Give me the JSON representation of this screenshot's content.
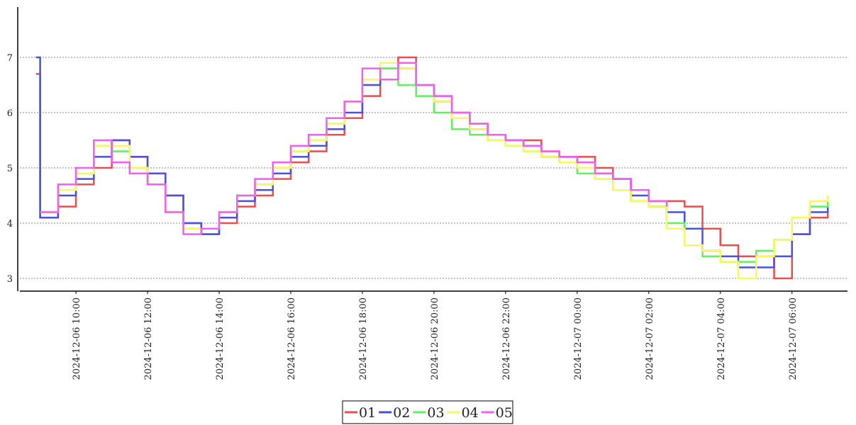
{
  "chart_data": {
    "type": "step-line",
    "x": [
      "2024-12-06 08:53",
      "2024-12-06 09:00",
      "2024-12-06 09:30",
      "2024-12-06 10:00",
      "2024-12-06 10:30",
      "2024-12-06 11:00",
      "2024-12-06 11:30",
      "2024-12-06 12:00",
      "2024-12-06 12:30",
      "2024-12-06 13:00",
      "2024-12-06 13:30",
      "2024-12-06 14:00",
      "2024-12-06 14:30",
      "2024-12-06 15:00",
      "2024-12-06 15:30",
      "2024-12-06 16:00",
      "2024-12-06 16:30",
      "2024-12-06 17:00",
      "2024-12-06 17:30",
      "2024-12-06 18:00",
      "2024-12-06 18:30",
      "2024-12-06 19:00",
      "2024-12-06 19:30",
      "2024-12-06 20:00",
      "2024-12-06 20:30",
      "2024-12-06 21:00",
      "2024-12-06 21:30",
      "2024-12-06 22:00",
      "2024-12-06 22:30",
      "2024-12-06 23:00",
      "2024-12-06 23:30",
      "2024-12-07 00:00",
      "2024-12-07 00:30",
      "2024-12-07 01:00",
      "2024-12-07 01:30",
      "2024-12-07 02:00",
      "2024-12-07 02:30",
      "2024-12-07 03:00",
      "2024-12-07 03:30",
      "2024-12-07 04:00",
      "2024-12-07 04:30",
      "2024-12-07 05:00",
      "2024-12-07 05:30",
      "2024-12-07 06:00",
      "2024-12-07 06:30",
      "2024-12-07 07:00"
    ],
    "series": [
      {
        "name": "01",
        "color": "#e85050",
        "values": [
          6.7,
          4.1,
          4.3,
          4.7,
          5.0,
          5.5,
          5.2,
          4.9,
          4.5,
          4.0,
          3.8,
          4.0,
          4.3,
          4.5,
          4.8,
          5.1,
          5.3,
          5.6,
          5.9,
          6.3,
          6.8,
          7.0,
          6.5,
          6.3,
          6.0,
          5.8,
          5.6,
          5.5,
          5.5,
          5.3,
          5.2,
          5.2,
          5.0,
          4.8,
          4.6,
          4.4,
          4.4,
          4.3,
          3.9,
          3.6,
          3.4,
          3.4,
          3.0,
          3.8,
          4.1,
          4.2
        ]
      },
      {
        "name": "02",
        "color": "#4a50e0",
        "values": [
          7.0,
          4.1,
          4.5,
          4.8,
          5.2,
          5.5,
          5.2,
          4.9,
          4.5,
          4.0,
          3.8,
          4.1,
          4.4,
          4.6,
          4.9,
          5.2,
          5.4,
          5.7,
          6.0,
          6.5,
          6.9,
          6.8,
          6.5,
          6.2,
          5.9,
          5.7,
          5.6,
          5.5,
          5.4,
          5.2,
          5.2,
          5.1,
          4.9,
          4.8,
          4.5,
          4.3,
          4.2,
          3.9,
          3.5,
          3.4,
          3.2,
          3.2,
          3.4,
          3.8,
          4.2,
          4.4
        ]
      },
      {
        "name": "03",
        "color": "#60f060",
        "values": [
          null,
          4.2,
          4.6,
          4.9,
          5.4,
          5.3,
          5.0,
          4.7,
          4.2,
          3.9,
          3.9,
          4.2,
          4.5,
          4.7,
          5.0,
          5.3,
          5.5,
          5.8,
          6.2,
          6.6,
          6.8,
          6.5,
          6.3,
          6.0,
          5.7,
          5.6,
          5.5,
          5.4,
          5.3,
          5.2,
          5.1,
          4.9,
          4.8,
          4.6,
          4.4,
          4.3,
          4.0,
          3.6,
          3.4,
          3.3,
          3.3,
          3.5,
          3.7,
          4.1,
          4.3,
          4.5
        ]
      },
      {
        "name": "04",
        "color": "#f8f860",
        "values": [
          null,
          4.2,
          4.6,
          4.9,
          5.4,
          5.4,
          5.0,
          4.7,
          4.2,
          3.9,
          3.9,
          4.2,
          4.5,
          4.7,
          5.0,
          5.3,
          5.5,
          5.8,
          6.2,
          6.6,
          6.9,
          6.8,
          6.5,
          6.2,
          5.9,
          5.7,
          5.5,
          5.4,
          5.3,
          5.2,
          5.1,
          5.0,
          4.8,
          4.6,
          4.4,
          4.3,
          3.9,
          3.6,
          3.5,
          3.3,
          3.0,
          3.4,
          3.7,
          4.1,
          4.4,
          4.5
        ]
      },
      {
        "name": "05",
        "color": "#f060f0",
        "values": [
          null,
          4.2,
          4.7,
          5.0,
          5.5,
          5.1,
          4.9,
          4.7,
          4.2,
          3.8,
          3.9,
          4.2,
          4.5,
          4.8,
          5.1,
          5.4,
          5.6,
          5.9,
          6.2,
          6.8,
          6.6,
          6.9,
          6.5,
          6.3,
          6.0,
          5.8,
          5.6,
          5.5,
          5.4,
          5.3,
          5.2,
          5.1,
          4.9,
          4.8,
          4.6,
          4.4,
          4.3,
          null,
          null,
          null,
          null,
          null,
          null,
          null,
          null,
          null
        ]
      }
    ],
    "xlim": [
      "2024-12-06 08:26",
      "2024-12-07 07:33"
    ],
    "xticks": [
      "2024-12-06 10:00",
      "2024-12-06 12:00",
      "2024-12-06 14:00",
      "2024-12-06 16:00",
      "2024-12-06 18:00",
      "2024-12-06 20:00",
      "2024-12-06 22:00",
      "2024-12-07 00:00",
      "2024-12-07 02:00",
      "2024-12-07 04:00",
      "2024-12-07 06:00"
    ],
    "ylim": [
      2.77,
      7.91
    ],
    "yticks": [
      3,
      4,
      5,
      6,
      7
    ],
    "grid": true,
    "legend": "bottom"
  }
}
